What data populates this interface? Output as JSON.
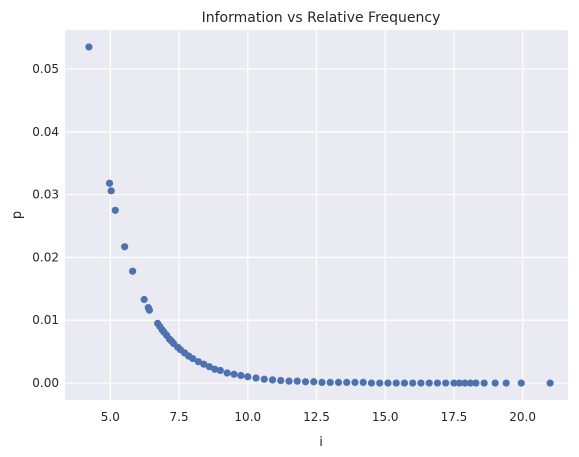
{
  "chart_data": {
    "type": "scatter",
    "title": "Information vs Relative Frequency",
    "xlabel": "i",
    "ylabel": "p",
    "xlim": [
      3.35,
      21.65
    ],
    "ylim": [
      -0.0027,
      0.0562
    ],
    "xticks": [
      5.0,
      7.5,
      10.0,
      12.5,
      15.0,
      17.5,
      20.0
    ],
    "xtick_labels": [
      "5.0",
      "7.5",
      "10.0",
      "12.5",
      "15.0",
      "17.5",
      "20.0"
    ],
    "yticks": [
      0.0,
      0.01,
      0.02,
      0.03,
      0.04,
      0.05
    ],
    "ytick_labels": [
      "0.00",
      "0.01",
      "0.02",
      "0.03",
      "0.04",
      "0.05"
    ],
    "grid": true,
    "background": "#eaeaf2",
    "marker_color": "#4c72b0",
    "notes_curve": "points lie on p = 2^(-i); sparse at low i, dense continuous band from ~6.7 to ~21",
    "series": [
      {
        "x": [
          4.22,
          4.97,
          5.03,
          5.18,
          5.52,
          5.81,
          6.23,
          6.38,
          6.42,
          6.72,
          6.8,
          6.88,
          6.95,
          7.05,
          7.15,
          7.22,
          7.3,
          7.45,
          7.55,
          7.7,
          7.85,
          8.0,
          8.2,
          8.4,
          8.6,
          8.8,
          9.0,
          9.25,
          9.5,
          9.75,
          10.0,
          10.3,
          10.6,
          10.9,
          11.2,
          11.5,
          11.8,
          12.1,
          12.4,
          12.7,
          13.0,
          13.3,
          13.6,
          13.9,
          14.2,
          14.5,
          14.8,
          15.1,
          15.4,
          15.7,
          16.0,
          16.3,
          16.6,
          16.9,
          17.2,
          17.5,
          17.7,
          17.9,
          18.1,
          18.3,
          18.6,
          19.0,
          19.4,
          19.95,
          21.0
        ],
        "y": [
          0.0535,
          0.0318,
          0.0306,
          0.0275,
          0.0217,
          0.0178,
          0.0133,
          0.012,
          0.0116,
          0.0095,
          0.009,
          0.0085,
          0.0081,
          0.0076,
          0.007,
          0.0067,
          0.0063,
          0.0057,
          0.0053,
          0.0048,
          0.0043,
          0.0039,
          0.0034,
          0.003,
          0.0026,
          0.0022,
          0.002,
          0.0016,
          0.0014,
          0.0012,
          0.001,
          0.0008,
          0.0006,
          0.0005,
          0.0004,
          0.0003,
          0.0003,
          0.0002,
          0.0002,
          0.0001,
          0.0001,
          0.0001,
          0.0001,
          0.0001,
          0.0001,
          0.0,
          0.0,
          0.0,
          0.0,
          0.0,
          0.0,
          0.0,
          0.0,
          0.0,
          0.0,
          0.0,
          0.0,
          0.0,
          0.0,
          0.0,
          0.0,
          0.0,
          0.0,
          0.0,
          0.0
        ]
      }
    ]
  }
}
